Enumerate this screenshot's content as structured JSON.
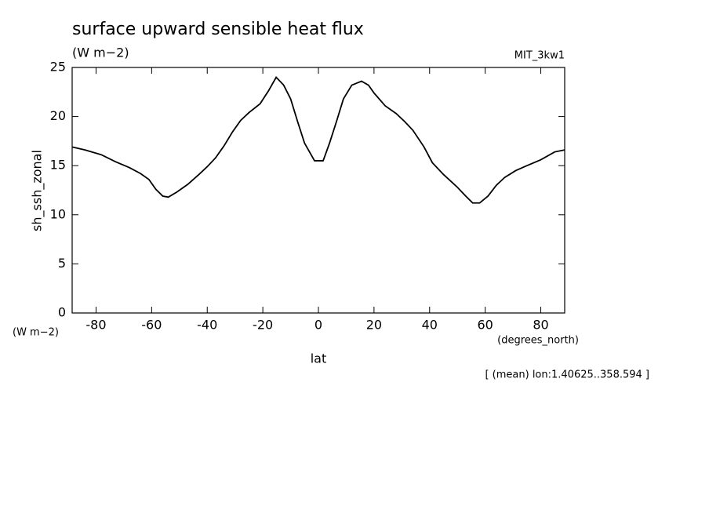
{
  "chart_data": {
    "type": "line",
    "title": "surface upward sensible heat flux",
    "units": "(W m−2)",
    "model": "MIT_3kw1",
    "y_label": "sh_ssh_zonal",
    "y_units": "(W m−2)",
    "x_units": "(degrees_north)",
    "x_label": "lat",
    "note": "[ (mean) lon:1.40625..358.594 ]",
    "x": [
      -88.6,
      -84,
      -78,
      -73,
      -68,
      -64,
      -61,
      -58.5,
      -56,
      -54,
      -51,
      -47,
      -43,
      -40,
      -37,
      -34,
      -31,
      -28,
      -25,
      -21,
      -18,
      -15.2,
      -12.5,
      -10,
      -7.5,
      -5,
      -1.4,
      1.7,
      4,
      6.5,
      9,
      12,
      15.5,
      18,
      20,
      24,
      28,
      31,
      34,
      38,
      41,
      45,
      50,
      53,
      55.5,
      58,
      61,
      64,
      67,
      71,
      75,
      80,
      85,
      88.6
    ],
    "series": [
      {
        "name": "sh_ssh_zonal",
        "color": "#000000",
        "values": [
          16.9,
          16.6,
          16.1,
          15.4,
          14.8,
          14.2,
          13.6,
          12.6,
          11.9,
          11.8,
          12.3,
          13.1,
          14.1,
          14.9,
          15.8,
          17.0,
          18.4,
          19.6,
          20.4,
          21.3,
          22.6,
          24.0,
          23.2,
          21.8,
          19.5,
          17.3,
          15.5,
          15.5,
          17.3,
          19.5,
          21.8,
          23.2,
          23.6,
          23.2,
          22.4,
          21.1,
          20.3,
          19.5,
          18.6,
          16.9,
          15.3,
          14.1,
          12.8,
          11.9,
          11.2,
          11.2,
          11.9,
          13.0,
          13.8,
          14.5,
          15.0,
          15.6,
          16.4,
          16.6
        ]
      }
    ],
    "xlim": [
      -88.6,
      88.6
    ],
    "ylim": [
      0,
      25
    ],
    "xticks": [
      -80,
      -60,
      -40,
      -20,
      0,
      20,
      40,
      60,
      80
    ],
    "yticks": [
      0,
      5,
      10,
      15,
      20,
      25
    ]
  }
}
